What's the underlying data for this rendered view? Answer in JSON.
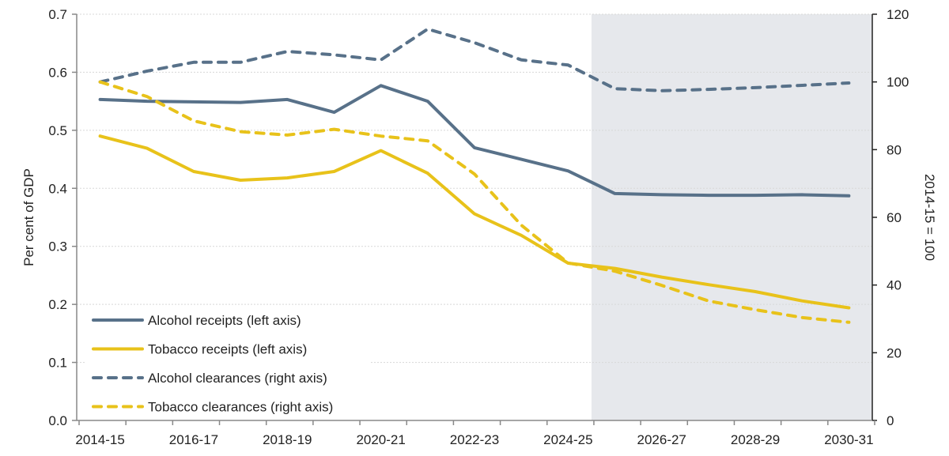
{
  "chart_data": {
    "type": "line",
    "title": "",
    "ylabel": "Per cent of GDP",
    "y2label": "2014-15 = 100",
    "categories": [
      "2014-15",
      "2015-16",
      "2016-17",
      "2017-18",
      "2018-19",
      "2019-20",
      "2020-21",
      "2021-22",
      "2022-23",
      "2023-24",
      "2024-25",
      "2025-26",
      "2026-27",
      "2027-28",
      "2028-29",
      "2029-30",
      "2030-31"
    ],
    "xtick_labels": [
      "2014-15",
      "2016-17",
      "2018-19",
      "2020-21",
      "2022-23",
      "2024-25",
      "2026-27",
      "2028-29",
      "2030-31"
    ],
    "ylim": [
      0,
      0.7
    ],
    "yticks": [
      "0.0",
      "0.1",
      "0.2",
      "0.3",
      "0.4",
      "0.5",
      "0.6",
      "0.7"
    ],
    "y2lim": [
      0,
      120
    ],
    "y2ticks": [
      "0",
      "20",
      "40",
      "60",
      "80",
      "100",
      "120"
    ],
    "grid": true,
    "shaded_region": {
      "from": "2025-26",
      "to": "2030-31",
      "color": "#E6E8EC"
    },
    "legend_position": "bottom-left",
    "series": [
      {
        "name": "Alcohol receipts (left axis)",
        "axis": "left",
        "style": "solid",
        "color": "#587189",
        "values": [
          0.553,
          0.55,
          0.549,
          0.548,
          0.553,
          0.531,
          0.577,
          0.55,
          0.47,
          0.45,
          0.43,
          0.391,
          0.389,
          0.388,
          0.388,
          0.389,
          0.387
        ]
      },
      {
        "name": "Tobacco receipts (left axis)",
        "axis": "left",
        "style": "solid",
        "color": "#E8C21A",
        "values": [
          0.49,
          0.469,
          0.429,
          0.414,
          0.418,
          0.429,
          0.465,
          0.426,
          0.356,
          0.319,
          0.271,
          0.262,
          0.247,
          0.234,
          0.222,
          0.206,
          0.194
        ]
      },
      {
        "name": "Alcohol clearances (right axis)",
        "axis": "right",
        "style": "dashed",
        "color": "#587189",
        "values": [
          100,
          103.2,
          105.8,
          105.8,
          109,
          108,
          106.5,
          115.6,
          111.6,
          106.5,
          105,
          98,
          97.4,
          97.8,
          98.3,
          99,
          99.7
        ]
      },
      {
        "name": "Tobacco clearances (right axis)",
        "axis": "right",
        "style": "dashed",
        "color": "#E8C21A",
        "values": [
          100,
          95.7,
          88.5,
          85.3,
          84.3,
          86,
          84,
          82.6,
          72.8,
          57.7,
          46.5,
          44.1,
          39.9,
          35.3,
          32.7,
          30.4,
          29
        ]
      }
    ]
  }
}
